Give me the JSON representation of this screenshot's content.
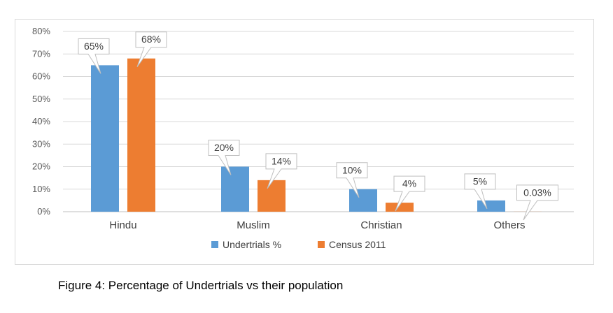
{
  "chart_data": {
    "type": "bar",
    "categories": [
      "Hindu",
      "Muslim",
      "Christian",
      "Others"
    ],
    "series": [
      {
        "name": "Undertrials %",
        "values": [
          65,
          20,
          10,
          5
        ],
        "labels": [
          "65%",
          "20%",
          "10%",
          "5%"
        ],
        "color": "#5b9bd5"
      },
      {
        "name": "Census 2011",
        "values": [
          68,
          14,
          4,
          0.03
        ],
        "labels": [
          "68%",
          "14%",
          "4%",
          "0.03%"
        ],
        "color": "#ed7d31"
      }
    ],
    "yticks": [
      "0%",
      "10%",
      "20%",
      "30%",
      "40%",
      "50%",
      "60%",
      "70%",
      "80%"
    ],
    "ylim": [
      0,
      80
    ],
    "grid": true,
    "legend": "bottom"
  },
  "caption": "Figure 4: Percentage of Undertrials vs their population"
}
